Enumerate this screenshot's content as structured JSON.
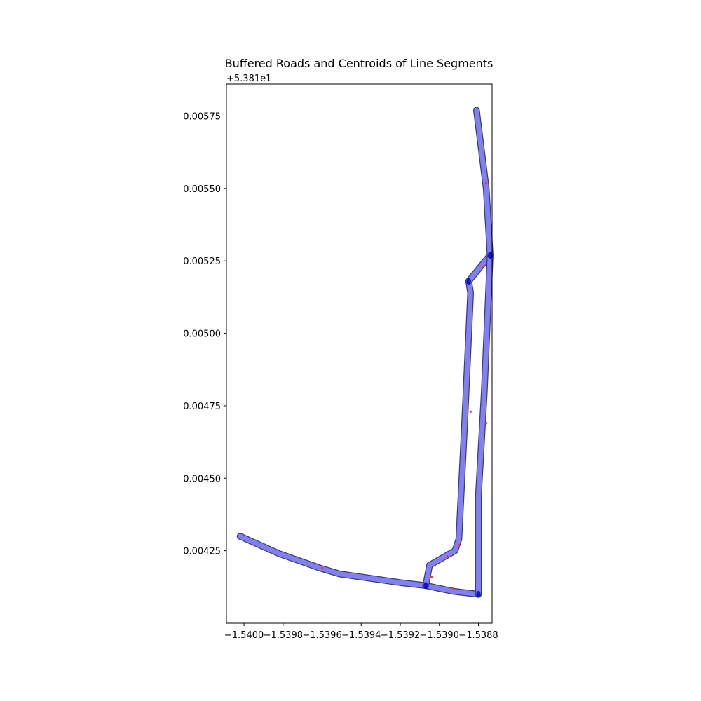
{
  "chart_data": {
    "type": "scatter",
    "title": "Buffered Roads and Centroids of Line Segments",
    "xlabel": "",
    "ylabel": "",
    "y_offset_label": "+5.381e1",
    "xlim": [
      -1.54009,
      -1.53873
    ],
    "ylim": [
      0.004,
      0.00586
    ],
    "x_ticks": [
      -1.54,
      -1.5398,
      -1.5396,
      -1.5394,
      -1.5392,
      -1.539,
      -1.5388
    ],
    "x_tick_labels": [
      "−1.5400",
      "−1.5398",
      "−1.5396",
      "−1.5394",
      "−1.5392",
      "−1.5390",
      "−1.5388"
    ],
    "y_ticks": [
      0.00425,
      0.0045,
      0.00475,
      0.005,
      0.00525,
      0.0055,
      0.00575
    ],
    "y_tick_labels": [
      "0.00425",
      "0.00450",
      "0.00475",
      "0.00500",
      "0.00525",
      "0.00550",
      "0.00575"
    ],
    "grid": false,
    "colors": {
      "buffer_fill": "#8080f0",
      "buffer_edge": "#3a3a80",
      "node": "#0000cc",
      "centroid": "#ff3333"
    },
    "series": [
      {
        "kind": "buffered-road",
        "lines": [
          [
            [
              -1.54002,
              0.0043
            ],
            [
              -1.53982,
              0.00424
            ],
            [
              -1.53961,
              0.00419
            ],
            [
              -1.53951,
              0.00417
            ],
            [
              -1.5392,
              0.00414
            ],
            [
              -1.53907,
              0.00413
            ]
          ],
          [
            [
              -1.53907,
              0.00413
            ],
            [
              -1.53893,
              0.00411
            ],
            [
              -1.5388,
              0.0041
            ]
          ],
          [
            [
              -1.53907,
              0.00413
            ],
            [
              -1.53905,
              0.0042
            ],
            [
              -1.53892,
              0.00425
            ],
            [
              -1.5389,
              0.00429
            ],
            [
              -1.53887,
              0.0047
            ],
            [
              -1.53884,
              0.00514
            ],
            [
              -1.53885,
              0.00518
            ]
          ],
          [
            [
              -1.53885,
              0.00518
            ],
            [
              -1.53874,
              0.00527
            ]
          ],
          [
            [
              -1.5388,
              0.0041
            ],
            [
              -1.5388,
              0.00444
            ],
            [
              -1.53877,
              0.0048
            ],
            [
              -1.53874,
              0.00527
            ]
          ],
          [
            [
              -1.53874,
              0.00527
            ],
            [
              -1.53876,
              0.0055
            ],
            [
              -1.53881,
              0.00577
            ]
          ]
        ]
      },
      {
        "kind": "node",
        "points": [
          [
            -1.53907,
            0.00413
          ],
          [
            -1.5388,
            0.0041
          ],
          [
            -1.53885,
            0.00518
          ],
          [
            -1.53874,
            0.00527
          ]
        ]
      },
      {
        "kind": "centroid",
        "points": [
          [
            -1.5396,
            0.00419
          ],
          [
            -1.53893,
            0.00412
          ],
          [
            -1.53904,
            0.00416
          ],
          [
            -1.53896,
            0.00423
          ],
          [
            -1.5389,
            0.00427
          ],
          [
            -1.53884,
            0.00473
          ],
          [
            -1.53878,
            0.00523
          ],
          [
            -1.53876,
            0.00469
          ],
          [
            -1.53876,
            0.00552
          ]
        ]
      }
    ]
  }
}
